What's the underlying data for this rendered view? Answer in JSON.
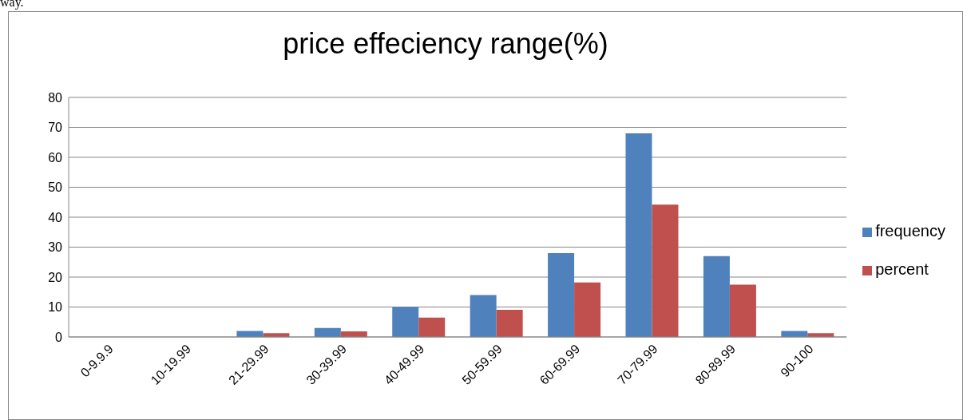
{
  "chart_data": {
    "type": "bar",
    "title": "price effeciency  range(%)",
    "annotations": [
      "way."
    ],
    "categories": [
      "0-9.9.9",
      "10-19.99",
      "21-29.99",
      "30-39.99",
      "40-49.99",
      "50-59.99",
      "60-69.99",
      "70-79.99",
      "80-89.99",
      "90-100"
    ],
    "series": [
      {
        "name": "frequency",
        "color": "#4f81bd",
        "values": [
          0,
          0,
          2,
          3,
          10,
          14,
          28,
          68,
          27,
          2
        ]
      },
      {
        "name": "percent",
        "color": "#c0504d",
        "values": [
          0,
          0,
          1.3,
          1.9,
          6.5,
          9.1,
          18.2,
          44.2,
          17.5,
          1.3
        ]
      }
    ],
    "ylim": [
      0,
      80
    ],
    "yticks": [
      0,
      10,
      20,
      30,
      40,
      50,
      60,
      70,
      80
    ],
    "grid": "y",
    "legend": "right"
  }
}
